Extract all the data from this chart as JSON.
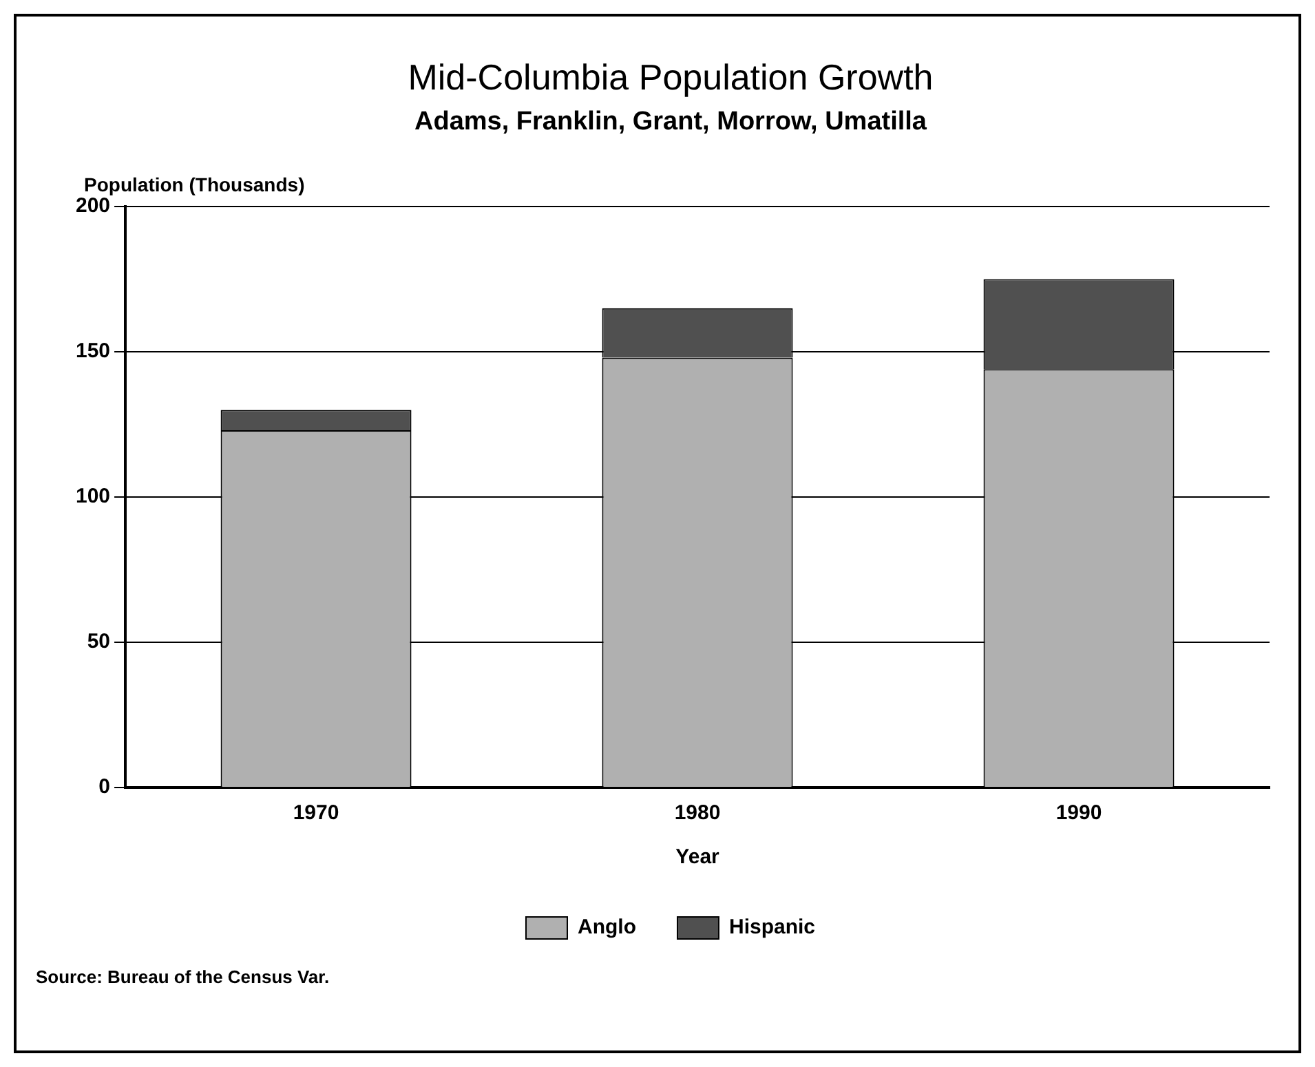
{
  "chart_data": {
    "type": "bar",
    "title": "Mid-Columbia Population Growth",
    "subtitle": "Adams, Franklin, Grant, Morrow, Umatilla",
    "xlabel": "Year",
    "ylabel": "Population (Thousands)",
    "categories": [
      "1970",
      "1980",
      "1990"
    ],
    "stacked": true,
    "series": [
      {
        "name": "Anglo",
        "color": "#b0b0b0",
        "values": [
          123,
          148,
          144
        ]
      },
      {
        "name": "Hispanic",
        "color": "#505050",
        "values": [
          7,
          17,
          31
        ]
      }
    ],
    "ylim": [
      0,
      200
    ],
    "yticks": [
      0,
      50,
      100,
      150,
      200
    ],
    "grid": "y",
    "legend": "bottom",
    "annotations": [
      "Source: Bureau of the Census Var."
    ]
  }
}
